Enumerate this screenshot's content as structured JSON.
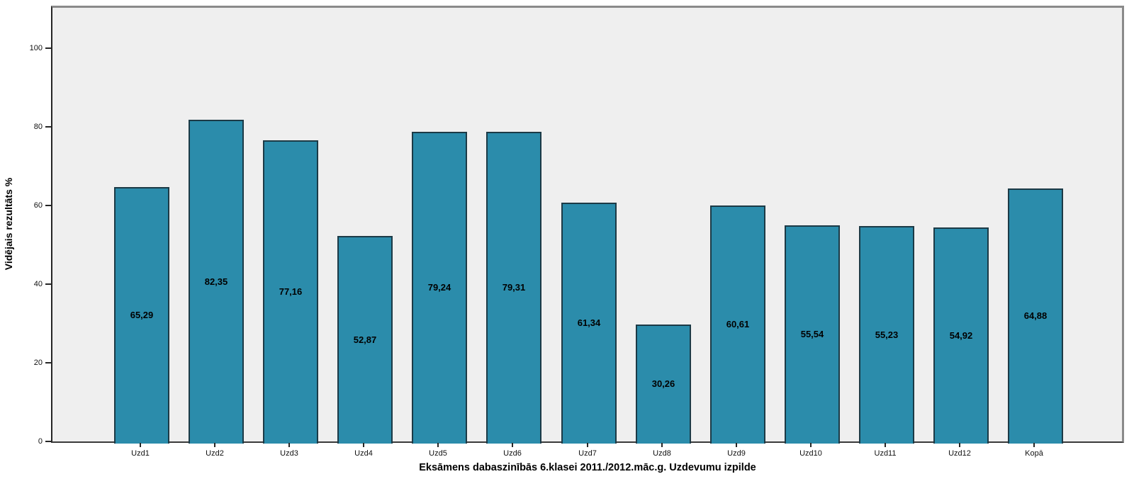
{
  "chart_data": {
    "type": "bar",
    "title": "",
    "xlabel": "Eksāmens dabaszinībās 6.klasei 2011./2012.māc.g. Uzdevumu izpilde",
    "ylabel": "Vidējais rezultāts %",
    "categories": [
      "Uzd1",
      "Uzd2",
      "Uzd3",
      "Uzd4",
      "Uzd5",
      "Uzd6",
      "Uzd7",
      "Uzd8",
      "Uzd9",
      "Uzd10",
      "Uzd11",
      "Uzd12",
      "Kopā"
    ],
    "values": [
      65.29,
      82.35,
      77.16,
      52.87,
      79.24,
      79.31,
      61.34,
      30.26,
      60.61,
      55.54,
      55.23,
      54.92,
      64.88
    ],
    "value_labels": [
      "65,29",
      "82,35",
      "77,16",
      "52,87",
      "79,24",
      "79,31",
      "61,34",
      "30,26",
      "60,61",
      "55,54",
      "55,23",
      "54,92",
      "64,88"
    ],
    "yticks": [
      0,
      20,
      40,
      60,
      80,
      100
    ],
    "ytick_labels": [
      "0",
      "20",
      "40",
      "60",
      "80",
      "100"
    ],
    "ylim": [
      0,
      110.5
    ],
    "grid": false,
    "legend": "none",
    "colors": {
      "bar_fill": "#2b8cab",
      "bar_border": "#1c3a46",
      "plot_background": "#efefef",
      "frame_border": "#8a8a8a",
      "axis_line": "#262626",
      "label_text": "#000000"
    }
  }
}
